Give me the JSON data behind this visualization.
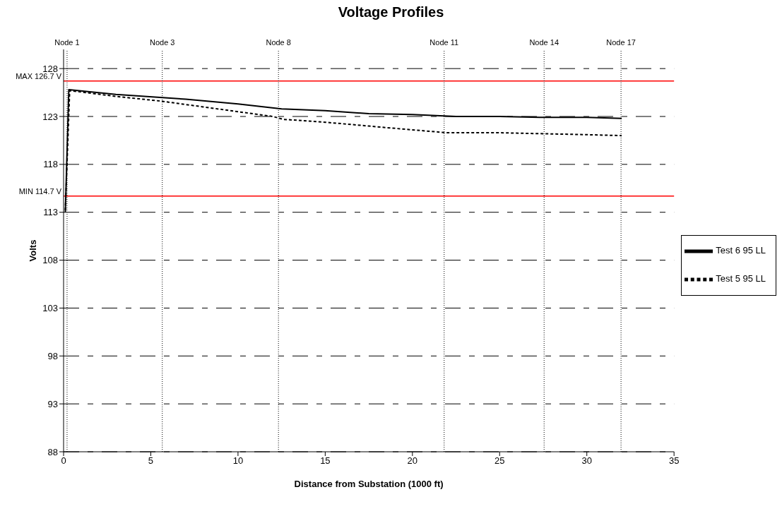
{
  "chart_data": {
    "type": "line",
    "title": "Voltage Profiles",
    "xlabel": "Distance from Substation (1000 ft)",
    "ylabel": "Volts",
    "xlim": [
      0,
      35
    ],
    "xticks": [
      0,
      5,
      10,
      15,
      20,
      25,
      30,
      35
    ],
    "ylim": [
      88,
      130
    ],
    "yticks": [
      88,
      93,
      98,
      103,
      108,
      113,
      118,
      123,
      128
    ],
    "grid": "y",
    "legend": "right",
    "marker": "none",
    "series": [
      {
        "name": "Test 6 95 LL",
        "color": "#000000",
        "line_style": "solid",
        "x": [
          0.1,
          0.3,
          3,
          7,
          10,
          12.5,
          15,
          17.5,
          20,
          22.5,
          25,
          27.5,
          30,
          32
        ],
        "values": [
          113,
          125.8,
          125.3,
          124.8,
          124.3,
          123.8,
          123.6,
          123.3,
          123.2,
          123,
          123,
          122.9,
          122.9,
          122.8
        ]
      },
      {
        "name": "Test 5 95 LL",
        "color": "#000000",
        "line_style": "dashed",
        "x": [
          0.1,
          0.35,
          3,
          5.6,
          8,
          10,
          12,
          12.6,
          15,
          17.5,
          20,
          22,
          25,
          27.5,
          30,
          32
        ],
        "values": [
          113.2,
          125.7,
          125.1,
          124.6,
          124,
          123.5,
          123,
          122.7,
          122.4,
          122,
          121.6,
          121.3,
          121.3,
          121.2,
          121.1,
          121
        ]
      }
    ],
    "ref_lines": [
      {
        "axis": "y",
        "value": 126.7,
        "label": "MAX 126.7 V",
        "color": "#ff0000",
        "line_style": "solid"
      },
      {
        "axis": "y",
        "value": 114.7,
        "label": "MIN 114.7 V",
        "color": "#ff0000",
        "line_style": "solid"
      },
      {
        "axis": "x",
        "value": 0.2,
        "label": "Node 1",
        "color": "#000000",
        "line_style": "dotted"
      },
      {
        "axis": "x",
        "value": 5.66,
        "label": "Node 3",
        "color": "#000000",
        "line_style": "dotted"
      },
      {
        "axis": "x",
        "value": 12.32,
        "label": "Node 8",
        "color": "#000000",
        "line_style": "dotted"
      },
      {
        "axis": "x",
        "value": 21.82,
        "label": "Node 11",
        "color": "#000000",
        "line_style": "dotted"
      },
      {
        "axis": "x",
        "value": 27.55,
        "label": "Node 14",
        "color": "#000000",
        "line_style": "dotted"
      },
      {
        "axis": "x",
        "value": 31.96,
        "label": "Node 17",
        "color": "#000000",
        "line_style": "dotted"
      }
    ]
  }
}
